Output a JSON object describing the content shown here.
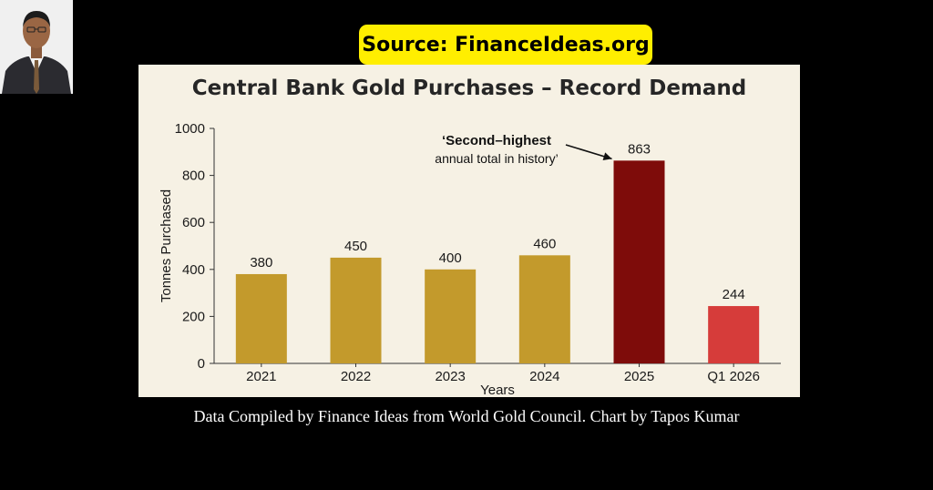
{
  "source_badge": "Source: FinanceIdeas.org",
  "footer_credit": "Data Compiled by Finance Ideas from World Gold Council. Chart by Tapos Kumar",
  "colors": {
    "badge": "#ffee00",
    "panel": "#f6f1e4",
    "gold_bar": "#c39a2c",
    "highlight_bar": "#7e0c0a",
    "latest_bar": "#d63c3a"
  },
  "chart_data": {
    "type": "bar",
    "title": "Central Bank Gold Purchases – Record Demand",
    "xlabel": "Years",
    "ylabel": "Tonnes Purchased",
    "categories": [
      "2021",
      "2022",
      "2023",
      "2024",
      "2025",
      "Q1 2026"
    ],
    "values": [
      380,
      450,
      400,
      460,
      863,
      244
    ],
    "bar_colors": [
      "#c39a2c",
      "#c39a2c",
      "#c39a2c",
      "#c39a2c",
      "#7e0c0a",
      "#d63c3a"
    ],
    "ylim": [
      0,
      1000
    ],
    "yticks": [
      0,
      200,
      400,
      600,
      800,
      1000
    ],
    "grid": false,
    "annotation": {
      "line1": "‘Second–highest",
      "line2": "annual total in history’",
      "target_category": "2025"
    }
  }
}
